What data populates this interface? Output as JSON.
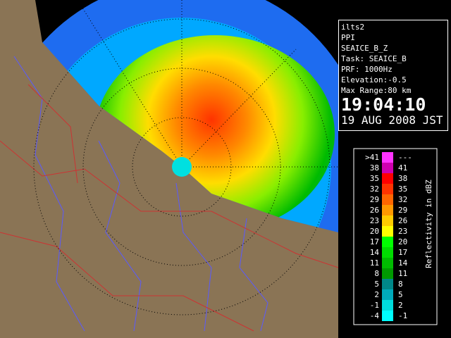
{
  "info": {
    "lines": [
      "ilts2",
      "PPI",
      "SEAICE_B_Z",
      "Task: SEAICE_B",
      "PRF: 1000Hz",
      "Elevation:-0.5",
      "Max Range:80 km"
    ],
    "time": "19:04:10",
    "date": "19 AUG 2008 JST"
  },
  "legend": {
    "title": "Reflectivity in dBZ",
    "rows": [
      {
        "low": ">41",
        "high": "---",
        "color": "#ff33ff"
      },
      {
        "low": "38",
        "high": "41",
        "color": "#d000b0"
      },
      {
        "low": "35",
        "high": "38",
        "color": "#ff0000"
      },
      {
        "low": "32",
        "high": "35",
        "color": "#ff3300"
      },
      {
        "low": "29",
        "high": "32",
        "color": "#ff6600"
      },
      {
        "low": "26",
        "high": "29",
        "color": "#ff9900"
      },
      {
        "low": "23",
        "high": "26",
        "color": "#ffcc00"
      },
      {
        "low": "20",
        "high": "23",
        "color": "#ffff00"
      },
      {
        "low": "17",
        "high": "20",
        "color": "#00ff00"
      },
      {
        "low": "14",
        "high": "17",
        "color": "#00dd00"
      },
      {
        "low": "11",
        "high": "14",
        "color": "#00bb00"
      },
      {
        "low": "8",
        "high": "11",
        "color": "#009900"
      },
      {
        "low": "5",
        "high": "8",
        "color": "#008888"
      },
      {
        "low": "2",
        "high": "5",
        "color": "#00aabb"
      },
      {
        "low": "-1",
        "high": "2",
        "color": "#00dddd"
      },
      {
        "low": "-4",
        "high": "-1",
        "color": "#00ffff"
      }
    ]
  }
}
